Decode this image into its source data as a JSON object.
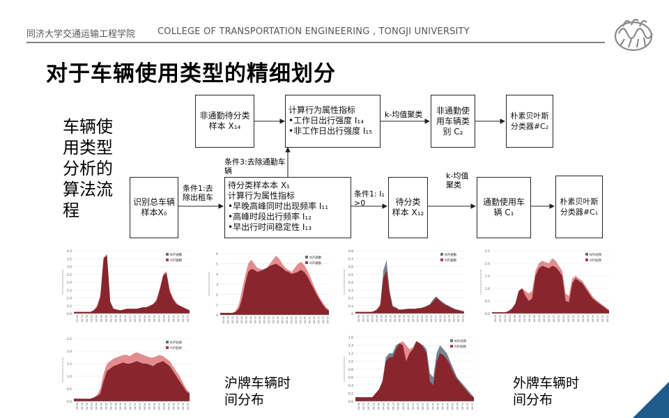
{
  "header": {
    "school_cn": "同济大学交通运输工程学院",
    "school_en": "COLLEGE OF TRANSPORTATION ENGINEERING , TONGJI UNIVERSITY"
  },
  "title": "对于车辆使用类型的精细划分",
  "side_label": "车辆使用类型分析的算法流程",
  "flow": {
    "identify_total": "识别总车辆样本X₀",
    "cond1": "条件1:去除出租车",
    "pending_main": {
      "l1": "待分类样本本 X₁",
      "l2": "计算行为属性指标",
      "l3": "•早晚高峰同时出现频率 I₁₁",
      "l4": "•高峰时段出行频率 I₁₂",
      "l5": "•早出行时间稳定性 I₁₃"
    },
    "cond3": "条件3:去除通勤车辆",
    "non_commute_pending": "非通勤待分类样本 X₁₄",
    "calc_top": {
      "l1": "计算行为属性指标",
      "l2": "•工作日出行强度 I₁₄",
      "l3": "•非工作日出行强度 I₁₅"
    },
    "kmeans_top": "k-均值聚类",
    "non_commute_type": "非通勤使用车辆类别 C₂",
    "bayes_top": "朴素贝叶斯分类器#C₂",
    "cond2": "条件1: I₁ >0",
    "pending_sub": "待分类样本 X₁₂",
    "kmeans_bottom": "k-均值聚类",
    "commute_type": "通勤使用车辆 C₁",
    "bayes_bottom": "朴素贝叶斯分类器#C₁"
  },
  "captions": {
    "hu": "沪牌车辆时间分布",
    "wai": "外牌车辆时间分布"
  },
  "colors": {
    "red": "#b23a3f",
    "red_dark": "#8c1d22",
    "gray": "#5f6f7e",
    "pink": "#e07f83",
    "accent_blue": "#1e5a8a"
  },
  "chart_data": [
    {
      "type": "area",
      "name": "hu_commute",
      "series": [
        {
          "name": "N沪通勤",
          "values": [
            0.1,
            0.1,
            0.1,
            0.1,
            0.1,
            0.1,
            0.2,
            0.4,
            1.0,
            3.5,
            3.8,
            0.8,
            0.3,
            0.25,
            0.2,
            0.25,
            0.3,
            0.3,
            0.3,
            0.3,
            0.35,
            0.4,
            0.4,
            0.5,
            0.6,
            0.8,
            1.5,
            2.4,
            2.6,
            1.4,
            0.9,
            0.6,
            0.5,
            0.4,
            0.3,
            0.2
          ]
        },
        {
          "name": "A沪通勤",
          "values": [
            0.1,
            0.1,
            0.1,
            0.1,
            0.1,
            0.1,
            0.2,
            0.5,
            1.2,
            3.6,
            3.7,
            0.7,
            0.3,
            0.25,
            0.2,
            0.25,
            0.3,
            0.3,
            0.3,
            0.3,
            0.35,
            0.4,
            0.4,
            0.5,
            0.6,
            0.9,
            1.6,
            2.5,
            2.7,
            1.5,
            1.0,
            0.7,
            0.5,
            0.4,
            0.3,
            0.2
          ]
        }
      ],
      "ylim": [
        0,
        4.0
      ],
      "yticks": [
        "0.0",
        "0.5",
        "1.0",
        "1.5",
        "2.0",
        "2.5",
        "3.0",
        "3.5",
        "4.0"
      ]
    },
    {
      "type": "area",
      "name": "hu_noncommute",
      "series": [
        {
          "name": "N沪通勤",
          "values": [
            0.2,
            0.2,
            0.2,
            0.2,
            0.2,
            0.3,
            0.6,
            1.5,
            3.0,
            4.2,
            4.5,
            4.4,
            4.2,
            4.3,
            4.5,
            4.6,
            4.8,
            4.9,
            5.0,
            4.8,
            4.6,
            4.3,
            4.2,
            4.0,
            4.1,
            4.2,
            4.4,
            4.2,
            3.8,
            3.2,
            2.6,
            2.0,
            1.5,
            1.0,
            0.6,
            0.4
          ]
        },
        {
          "name": "A沪通勤",
          "values": [
            0.2,
            0.2,
            0.2,
            0.2,
            0.2,
            0.4,
            1.0,
            2.4,
            3.8,
            5.0,
            5.4,
            5.0,
            4.6,
            4.5,
            4.4,
            4.6,
            5.0,
            5.4,
            5.8,
            5.5,
            5.0,
            4.6,
            4.4,
            4.2,
            4.6,
            5.0,
            5.2,
            4.9,
            4.4,
            3.7,
            3.0,
            2.3,
            1.7,
            1.2,
            0.8,
            0.5
          ]
        }
      ],
      "ylim": [
        0,
        6
      ],
      "yticks": [
        "0",
        "1",
        "2",
        "3",
        "4",
        "5",
        "6"
      ]
    },
    {
      "type": "area",
      "name": "hu_low",
      "series": [
        {
          "name": "N沪低频",
          "values": [
            0.1,
            0.1,
            0.1,
            0.1,
            0.1,
            0.1,
            0.15,
            0.2,
            0.3,
            0.8,
            1.2,
            1.3,
            1.4,
            1.45,
            1.5,
            1.55,
            1.5,
            1.5,
            1.55,
            1.6,
            1.55,
            1.5,
            1.5,
            1.45,
            1.4,
            1.5,
            1.55,
            1.6,
            1.5,
            1.4,
            1.2,
            1.0,
            0.8,
            0.6,
            0.4,
            0.3
          ]
        },
        {
          "name": "A沪低频",
          "values": [
            0.1,
            0.1,
            0.1,
            0.1,
            0.1,
            0.1,
            0.15,
            0.25,
            0.5,
            1.1,
            1.5,
            1.6,
            1.7,
            1.75,
            1.8,
            1.85,
            1.85,
            1.8,
            1.9,
            1.95,
            1.9,
            1.85,
            1.8,
            1.75,
            1.75,
            1.8,
            1.85,
            1.8,
            1.7,
            1.6,
            1.4,
            1.2,
            1.0,
            0.75,
            0.5,
            0.35
          ]
        }
      ],
      "ylim": [
        0,
        2.5
      ],
      "yticks": [
        "0.0",
        "0.5",
        "1.0",
        "1.5",
        "2.0",
        "2.5"
      ]
    },
    {
      "type": "area",
      "name": "wai_commute",
      "series": [
        {
          "name": "N外通勤",
          "values": [
            0.02,
            0.02,
            0.02,
            0.02,
            0.02,
            0.02,
            0.03,
            0.05,
            0.1,
            0.55,
            0.68,
            0.3,
            0.1,
            0.08,
            0.05,
            0.05,
            0.06,
            0.06,
            0.06,
            0.06,
            0.07,
            0.07,
            0.08,
            0.1,
            0.12,
            0.18,
            0.22,
            0.18,
            0.15,
            0.12,
            0.1,
            0.08,
            0.06,
            0.05,
            0.04,
            0.03
          ]
        },
        {
          "name": "A外通勤",
          "values": [
            0.02,
            0.02,
            0.02,
            0.02,
            0.02,
            0.02,
            0.03,
            0.06,
            0.12,
            0.45,
            0.55,
            0.25,
            0.08,
            0.07,
            0.05,
            0.05,
            0.05,
            0.06,
            0.06,
            0.06,
            0.06,
            0.07,
            0.08,
            0.09,
            0.11,
            0.15,
            0.2,
            0.17,
            0.13,
            0.11,
            0.09,
            0.07,
            0.05,
            0.04,
            0.03,
            0.02
          ]
        }
      ],
      "ylim": [
        0,
        0.8
      ],
      "yticks": [
        "0",
        "0.1",
        "0.2",
        "0.3",
        "0.4",
        "0.5",
        "0.6",
        "0.7",
        "0.8"
      ]
    },
    {
      "type": "area",
      "name": "wai_noncommute",
      "series": [
        {
          "name": "N外低频",
          "values": [
            0.05,
            0.05,
            0.05,
            0.05,
            0.05,
            0.1,
            0.2,
            0.4,
            0.9,
            1.0,
            0.7,
            0.5,
            0.6,
            1.5,
            1.8,
            1.9,
            1.85,
            1.8,
            1.9,
            1.85,
            1.7,
            1.5,
            0.5,
            0.45,
            1.2,
            1.4,
            1.3,
            1.2,
            1.0,
            0.8,
            0.6,
            0.5,
            0.4,
            0.3,
            0.2,
            0.1
          ]
        },
        {
          "name": "A外低频",
          "values": [
            0.05,
            0.05,
            0.05,
            0.05,
            0.05,
            0.1,
            0.2,
            0.4,
            0.9,
            1.0,
            0.9,
            0.8,
            0.9,
            1.7,
            2.0,
            2.1,
            2.05,
            2.0,
            2.2,
            2.1,
            1.9,
            1.7,
            0.8,
            0.7,
            1.4,
            1.5,
            1.4,
            1.3,
            1.1,
            0.9,
            0.7,
            0.55,
            0.45,
            0.35,
            0.25,
            0.15
          ]
        }
      ],
      "ylim": [
        0,
        2.5
      ],
      "yticks": [
        "0.0",
        "0.5",
        "1.0",
        "1.5",
        "2.0",
        "2.5"
      ]
    },
    {
      "type": "area",
      "name": "wai_low",
      "series": [
        {
          "name": "N外低频",
          "values": [
            0.1,
            0.1,
            0.1,
            0.1,
            0.1,
            0.1,
            0.2,
            0.3,
            0.5,
            1.1,
            1.2,
            1.2,
            1.4,
            1.45,
            1.4,
            1.0,
            1.2,
            1.3,
            1.5,
            1.45,
            1.4,
            1.3,
            0.7,
            0.6,
            1.2,
            1.4,
            1.3,
            1.2,
            1.0,
            0.8,
            0.6,
            0.5,
            0.4,
            0.3,
            0.2,
            0.1
          ]
        },
        {
          "name": "A外低频",
          "values": [
            0.1,
            0.1,
            0.1,
            0.1,
            0.1,
            0.1,
            0.2,
            0.3,
            0.5,
            1.0,
            1.1,
            1.1,
            1.3,
            1.45,
            1.5,
            1.4,
            1.3,
            1.35,
            1.5,
            1.45,
            1.35,
            1.2,
            0.5,
            0.4,
            1.0,
            1.2,
            1.15,
            1.05,
            0.9,
            0.7,
            0.55,
            0.45,
            0.35,
            0.25,
            0.15,
            0.1
          ]
        }
      ],
      "ylim": [
        0,
        1.6
      ],
      "yticks": [
        "0.0",
        "0.2",
        "0.4",
        "0.6",
        "0.8",
        "1.0",
        "1.2",
        "1.4",
        "1.6"
      ]
    }
  ]
}
